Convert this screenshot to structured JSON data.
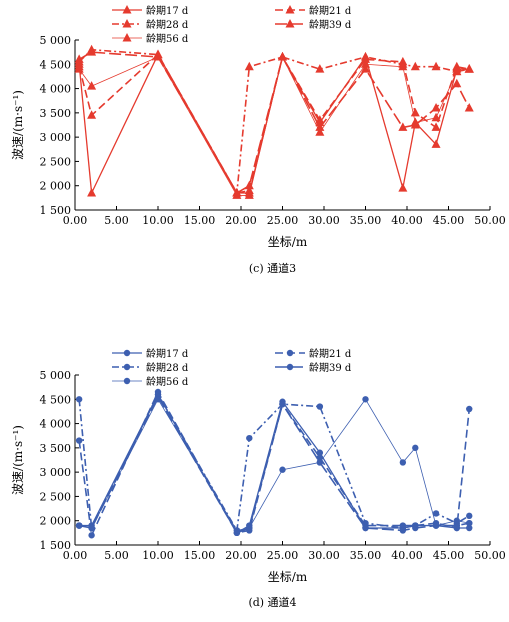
{
  "chart_data": [
    {
      "type": "line",
      "color": "#e53a2e",
      "marker": "triangle",
      "caption": "(c) 通道3",
      "xlabel": "坐标/m",
      "ylabel": "波速/(m·s⁻¹)",
      "xlim": [
        0,
        50
      ],
      "ylim": [
        1500,
        5000
      ],
      "xticks": [
        "0.00",
        "5.00",
        "10.00",
        "15.00",
        "20.00",
        "25.00",
        "30.00",
        "35.00",
        "40.00",
        "45.00",
        "50.00"
      ],
      "yticks": [
        "1 500",
        "2 000",
        "2 500",
        "3 000",
        "3 500",
        "4 000",
        "4 500",
        "5 000"
      ],
      "legend": "top",
      "series": [
        {
          "name": "龄期17 d",
          "style": "solid",
          "x": [
            0.5,
            2,
            10,
            19.5,
            21,
            25,
            29.5,
            35,
            39.5,
            41,
            43.5,
            46,
            47.5
          ],
          "y": [
            4500,
            1850,
            4700,
            1850,
            1850,
            4650,
            3300,
            4650,
            1950,
            3300,
            2850,
            4400,
            4400
          ]
        },
        {
          "name": "龄期21 d",
          "style": "dashed",
          "x": [
            0.5,
            2,
            10,
            19.5,
            21,
            25,
            29.5,
            35,
            39.5,
            41,
            43.5,
            46,
            47.5
          ],
          "y": [
            4450,
            3450,
            4700,
            1850,
            1900,
            4650,
            3350,
            4600,
            4550,
            3500,
            3200,
            4450,
            4400
          ]
        },
        {
          "name": "龄期28 d",
          "style": "dashdot",
          "x": [
            0.5,
            2,
            10,
            19.5,
            21,
            25,
            29.5,
            35,
            39.5,
            41,
            43.5,
            46,
            47.5
          ],
          "y": [
            4550,
            4800,
            4700,
            1850,
            4450,
            4650,
            4400,
            4650,
            4500,
            4450,
            4450,
            4350,
            4400
          ]
        },
        {
          "name": "龄期39 d",
          "style": "longdash",
          "x": [
            0.5,
            2,
            10,
            19.5,
            21,
            25,
            29.5,
            35,
            39.5,
            41,
            43.5,
            46,
            47.5
          ],
          "y": [
            4600,
            4750,
            4650,
            1850,
            2000,
            4650,
            3200,
            4400,
            3200,
            3250,
            3600,
            4100,
            3600
          ]
        },
        {
          "name": "龄期56 d",
          "style": "solid-thin",
          "x": [
            0.5,
            2,
            10,
            19.5,
            21,
            25,
            29.5,
            35,
            39.5,
            41,
            43.5,
            46,
            47.5
          ],
          "y": [
            4400,
            4050,
            4650,
            1800,
            1800,
            4650,
            3100,
            4500,
            4450,
            3300,
            3400,
            4350,
            4400
          ]
        }
      ]
    },
    {
      "type": "line",
      "color": "#3d5fb0",
      "marker": "circle",
      "caption": "(d) 通道4",
      "xlabel": "坐标/m",
      "ylabel": "波速/(m·s⁻¹)",
      "xlim": [
        0,
        50
      ],
      "ylim": [
        1500,
        5000
      ],
      "xticks": [
        "0.00",
        "5.00",
        "10.00",
        "15.00",
        "20.00",
        "25.00",
        "30.00",
        "35.00",
        "40.00",
        "45.00",
        "50.00"
      ],
      "yticks": [
        "1 500",
        "2 000",
        "2 500",
        "3 000",
        "3 500",
        "4 000",
        "4 500",
        "5 000"
      ],
      "legend": "top",
      "series": [
        {
          "name": "龄期17 d",
          "style": "solid",
          "x": [
            0.5,
            2,
            10,
            19.5,
            21,
            25,
            29.5,
            35,
            39.5,
            41,
            43.5,
            46,
            47.5
          ],
          "y": [
            1900,
            1900,
            4600,
            1750,
            1900,
            4450,
            3400,
            1850,
            1850,
            1900,
            1900,
            1850,
            1850
          ]
        },
        {
          "name": "龄期21 d",
          "style": "dashed",
          "x": [
            0.5,
            2,
            10,
            19.5,
            21,
            25,
            29.5,
            35,
            39.5,
            41,
            43.5,
            46,
            47.5
          ],
          "y": [
            3650,
            1700,
            4650,
            1750,
            1800,
            4400,
            3300,
            1900,
            1900,
            1900,
            1950,
            1850,
            4300
          ]
        },
        {
          "name": "龄期28 d",
          "style": "dashdot",
          "x": [
            0.5,
            2,
            10,
            19.5,
            21,
            25,
            29.5,
            35,
            39.5,
            41,
            43.5,
            46,
            47.5
          ],
          "y": [
            4500,
            1850,
            4600,
            1800,
            3700,
            4400,
            4350,
            1950,
            1850,
            1900,
            2150,
            1950,
            2100
          ]
        },
        {
          "name": "龄期39 d",
          "style": "longdash",
          "x": [
            0.5,
            2,
            10,
            19.5,
            21,
            25,
            29.5,
            35,
            39.5,
            41,
            43.5,
            46,
            47.5
          ],
          "y": [
            1900,
            1850,
            4550,
            1750,
            1850,
            4400,
            3200,
            1850,
            1800,
            1850,
            1900,
            1900,
            1950
          ]
        },
        {
          "name": "龄期56 d",
          "style": "solid-thin",
          "x": [
            0.5,
            2,
            10,
            19.5,
            21,
            25,
            29.5,
            35,
            39.5,
            41,
            43.5,
            46,
            47.5
          ],
          "y": [
            1900,
            1850,
            4500,
            1800,
            1850,
            3050,
            3200,
            4500,
            3200,
            3500,
            1900,
            2000,
            1950
          ]
        }
      ]
    }
  ]
}
